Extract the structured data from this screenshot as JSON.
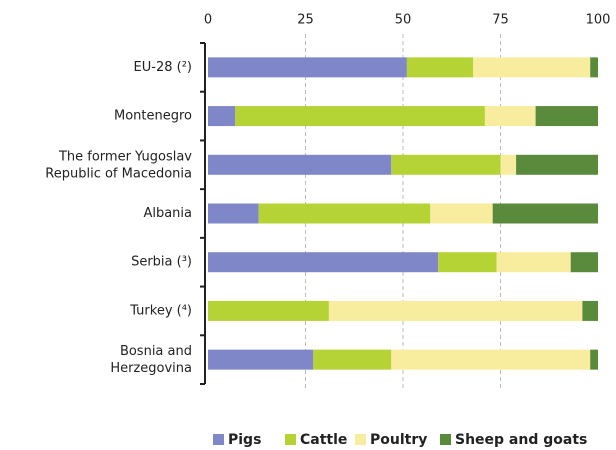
{
  "chart_data": {
    "type": "stacked_bar_horizontal",
    "categories": [
      "EU-28 (²)",
      "Montenegro",
      "The former Yugoslav\nRepublic of Macedonia",
      "Albania",
      "Serbia (³)",
      "Turkey (⁴)",
      "Bosnia and\nHerzegovina"
    ],
    "series": [
      {
        "name": "Pigs",
        "color": "#7f87c8",
        "values": [
          51,
          7,
          47,
          13,
          59,
          0,
          27
        ]
      },
      {
        "name": "Cattle",
        "color": "#b5d334",
        "values": [
          17,
          64,
          28,
          44,
          15,
          31,
          20
        ]
      },
      {
        "name": "Poultry",
        "color": "#f8ec9e",
        "values": [
          30,
          13,
          4,
          16,
          19,
          65,
          51
        ]
      },
      {
        "name": "Sheep and goats",
        "color": "#5a8a3c",
        "values": [
          2,
          16,
          21,
          27,
          7,
          4,
          2
        ]
      }
    ],
    "xlim": [
      0,
      100
    ],
    "xticks": [
      0,
      25,
      50,
      75,
      100
    ],
    "grid": true,
    "legend": "bottom"
  }
}
